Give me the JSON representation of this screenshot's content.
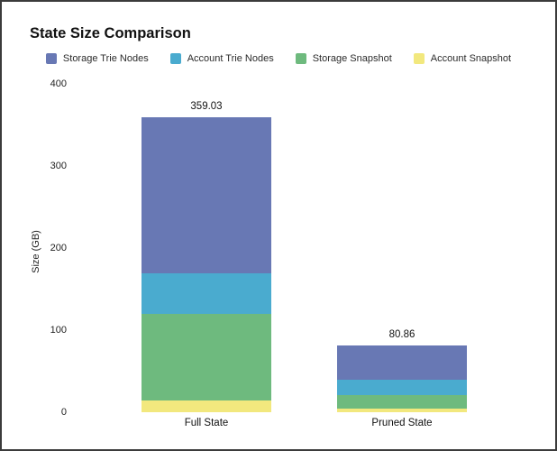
{
  "frame": {
    "border_color": "#3b3b3b",
    "background": "#ffffff"
  },
  "chart_data": {
    "type": "bar",
    "stacked": true,
    "title": "State Size Comparison",
    "ylabel": "Size (GB)",
    "xlabel": "",
    "categories": [
      "Full State",
      "Pruned State"
    ],
    "series": [
      {
        "name": "Storage Trie Nodes",
        "color": "#6878b4",
        "values": [
          189.33,
          41.0
        ]
      },
      {
        "name": "Account Trie Nodes",
        "color": "#4aabcf",
        "values": [
          50.0,
          19.2
        ]
      },
      {
        "name": "Storage Snapshot",
        "color": "#6eba7e",
        "values": [
          105.7,
          16.0
        ]
      },
      {
        "name": "Account Snapshot",
        "color": "#f2e87e",
        "values": [
          14.0,
          4.66
        ]
      }
    ],
    "totals": [
      "359.03",
      "80.86"
    ],
    "yticks": [
      0,
      100,
      200,
      300,
      400
    ],
    "ylim": [
      0,
      400
    ],
    "grid": false,
    "legend_position": "top"
  }
}
